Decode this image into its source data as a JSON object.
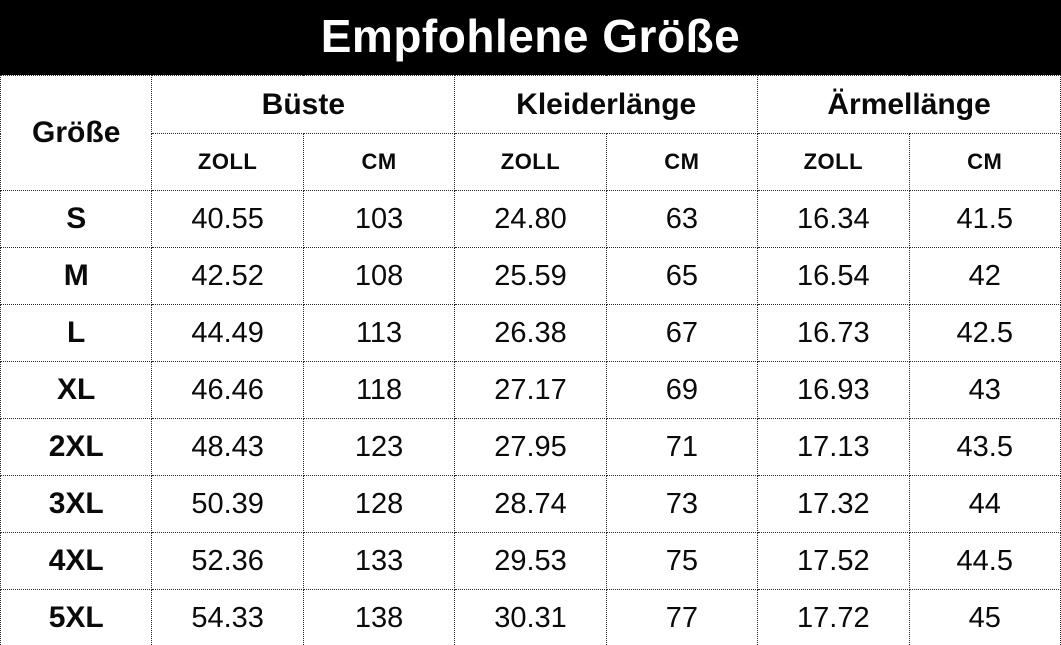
{
  "title": "Empfohlene Größe",
  "colors": {
    "title_bg": "#000000",
    "title_text": "#ffffff",
    "table_bg": "#ffffff",
    "text": "#0a0a0a",
    "border": "#2b2b2b"
  },
  "table": {
    "corner_header": "Größe",
    "groups": [
      {
        "label": "Büste",
        "sub": [
          "ZOLL",
          "CM"
        ]
      },
      {
        "label": "Kleiderlänge",
        "sub": [
          "ZOLL",
          "CM"
        ]
      },
      {
        "label": "Ärmellänge",
        "sub": [
          "ZOLL",
          "CM"
        ]
      }
    ],
    "rows": [
      {
        "size": "S",
        "values": [
          "40.55",
          "103",
          "24.80",
          "63",
          "16.34",
          "41.5"
        ]
      },
      {
        "size": "M",
        "values": [
          "42.52",
          "108",
          "25.59",
          "65",
          "16.54",
          "42"
        ]
      },
      {
        "size": "L",
        "values": [
          "44.49",
          "113",
          "26.38",
          "67",
          "16.73",
          "42.5"
        ]
      },
      {
        "size": "XL",
        "values": [
          "46.46",
          "118",
          "27.17",
          "69",
          "16.93",
          "43"
        ]
      },
      {
        "size": "2XL",
        "values": [
          "48.43",
          "123",
          "27.95",
          "71",
          "17.13",
          "43.5"
        ]
      },
      {
        "size": "3XL",
        "values": [
          "50.39",
          "128",
          "28.74",
          "73",
          "17.32",
          "44"
        ]
      },
      {
        "size": "4XL",
        "values": [
          "52.36",
          "133",
          "29.53",
          "75",
          "17.52",
          "44.5"
        ]
      },
      {
        "size": "5XL",
        "values": [
          "54.33",
          "138",
          "30.31",
          "77",
          "17.72",
          "45"
        ]
      }
    ]
  },
  "chart_data": {
    "type": "table",
    "title": "Empfohlene Größe",
    "columns": [
      "Größe",
      "Büste ZOLL",
      "Büste CM",
      "Kleiderlänge ZOLL",
      "Kleiderlänge CM",
      "Ärmellänge ZOLL",
      "Ärmellänge CM"
    ],
    "rows": [
      [
        "S",
        40.55,
        103,
        24.8,
        63,
        16.34,
        41.5
      ],
      [
        "M",
        42.52,
        108,
        25.59,
        65,
        16.54,
        42
      ],
      [
        "L",
        44.49,
        113,
        26.38,
        67,
        16.73,
        42.5
      ],
      [
        "XL",
        46.46,
        118,
        27.17,
        69,
        16.93,
        43
      ],
      [
        "2XL",
        48.43,
        123,
        27.95,
        71,
        17.13,
        43.5
      ],
      [
        "3XL",
        50.39,
        128,
        28.74,
        73,
        17.32,
        44
      ],
      [
        "4XL",
        52.36,
        133,
        29.53,
        75,
        17.52,
        44.5
      ],
      [
        "5XL",
        54.33,
        138,
        30.31,
        77,
        17.72,
        45
      ]
    ]
  }
}
